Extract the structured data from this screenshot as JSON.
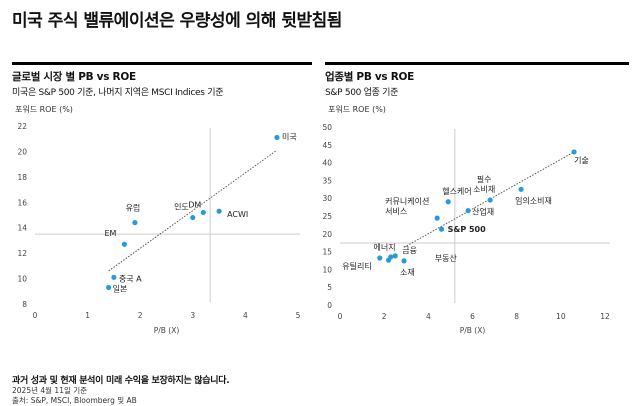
{
  "page": {
    "title": "미국 주식 밸류에이션은 우량성에 의해 뒷받침됨"
  },
  "footer": {
    "disclaimer": "과거 성과 및 현재 분석이 미래 수익을 보장하지는 않습니다.",
    "date": "2025년 4월 11일 기준",
    "source": "출처: S&P, MSCI, Bloomberg 및 AB"
  },
  "colors": {
    "point": "#2a9ad6",
    "trend": "#555555",
    "ref_line": "#cccccc",
    "rule": "#000000"
  },
  "chart_data": [
    {
      "type": "scatter",
      "title": "글로벌 시장 별 PB vs ROE",
      "subtitle": "미국은 S&P 500 기준, 나머지 지역은 MSCI Indices 기준",
      "xlabel": "P/B (X)",
      "ylabel": "포워드 ROE (%)",
      "xlim": [
        0,
        5
      ],
      "ylim": [
        8,
        22
      ],
      "xticks": [
        "0",
        "1",
        "2",
        "3",
        "4",
        "5"
      ],
      "yticks": [
        "8",
        "10",
        "12",
        "14",
        "16",
        "18",
        "20",
        "22"
      ],
      "grid": false,
      "ref_lines": {
        "x": 3.33,
        "y": 13.5
      },
      "trendline": {
        "x": [
          1.4,
          4.6
        ],
        "y": [
          10.6,
          20.1
        ]
      },
      "points": [
        {
          "label": "미국",
          "x": 4.6,
          "y": 21.1,
          "bold": false
        },
        {
          "label": "ACWI",
          "x": 3.5,
          "y": 15.3,
          "bold": false
        },
        {
          "label": "DM",
          "x": 3.2,
          "y": 15.2,
          "bold": false
        },
        {
          "label": "인도",
          "x": 3.0,
          "y": 14.8,
          "bold": false
        },
        {
          "label": "유럽",
          "x": 1.9,
          "y": 14.4,
          "bold": false
        },
        {
          "label": "EM",
          "x": 1.7,
          "y": 12.7,
          "bold": false
        },
        {
          "label": "중국 A",
          "x": 1.5,
          "y": 10.1,
          "bold": false
        },
        {
          "label": "일본",
          "x": 1.4,
          "y": 9.3,
          "bold": false
        }
      ]
    },
    {
      "type": "scatter",
      "title": "업종별 PB vs ROE",
      "subtitle": "S&P 500 업종 기준",
      "xlabel": "P/B (X)",
      "ylabel": "포워드 ROE (%)",
      "xlim": [
        0,
        12
      ],
      "ylim": [
        0,
        50
      ],
      "xticks": [
        "0",
        "2",
        "4",
        "6",
        "8",
        "10",
        "12"
      ],
      "yticks": [
        "0",
        "5",
        "10",
        "15",
        "20",
        "25",
        "30",
        "35",
        "40",
        "45",
        "50"
      ],
      "grid": false,
      "ref_lines": {
        "x": 5.2,
        "y": 17.4
      },
      "trendline": {
        "x": [
          2.9,
          10.6
        ],
        "y": [
          16.2,
          43
        ]
      },
      "points": [
        {
          "label": "기술",
          "x": 10.6,
          "y": 43.0
        },
        {
          "label": "임의소비재",
          "x": 8.2,
          "y": 32.5
        },
        {
          "label": "필수\n소비재",
          "x": 6.8,
          "y": 29.5
        },
        {
          "label": "산업재",
          "x": 5.8,
          "y": 26.5
        },
        {
          "label": "헬스케어",
          "x": 4.9,
          "y": 29.0
        },
        {
          "label": "커뮤니케이션\n서비스",
          "x": 4.4,
          "y": 24.4
        },
        {
          "label": "S&P 500",
          "x": 4.6,
          "y": 21.3,
          "bold": true
        },
        {
          "label": "유틸리티",
          "x": 1.8,
          "y": 13.2
        },
        {
          "label": "에너지",
          "x": 2.2,
          "y": 12.6
        },
        {
          "label": "금융",
          "x": 2.5,
          "y": 13.8
        },
        {
          "label": "부동산",
          "x": 2.3,
          "y": 13.5
        },
        {
          "label": "소재",
          "x": 2.9,
          "y": 12.4
        }
      ]
    }
  ]
}
